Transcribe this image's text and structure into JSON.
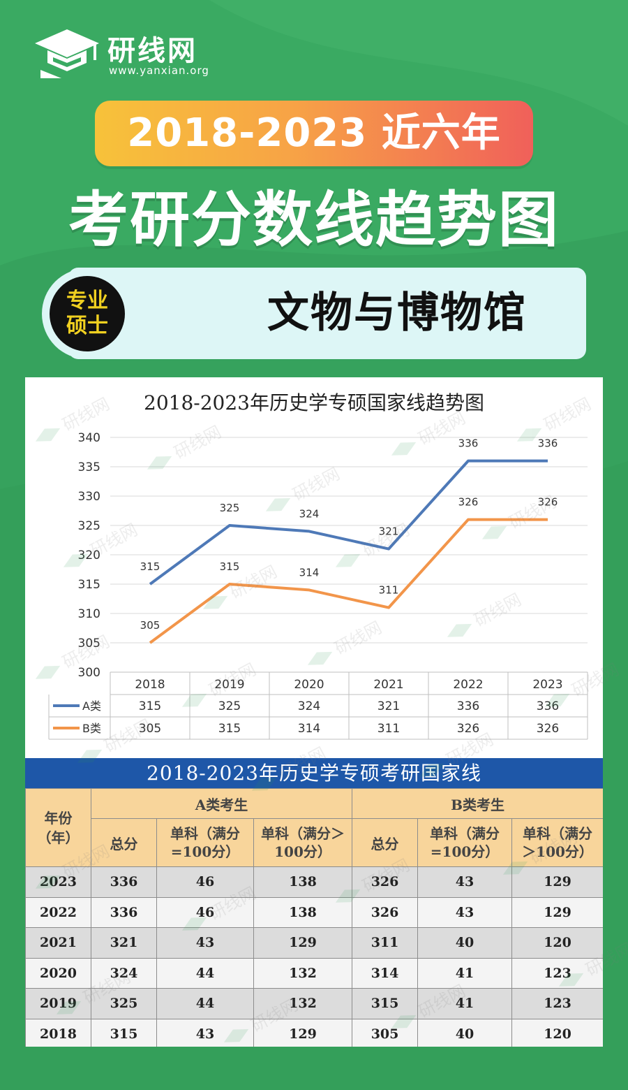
{
  "brand": {
    "name": "研线网",
    "url": "www.yanxian.org"
  },
  "header": {
    "years_banner": "2018-2023 近六年",
    "main_title": "考研分数线趋势图"
  },
  "subject": {
    "badge_line1": "专业",
    "badge_line2": "硕士",
    "name": "文物与博物馆"
  },
  "chart_data": {
    "type": "line",
    "title": "2018-2023年历史学专硕国家线趋势图",
    "categories": [
      "2018",
      "2019",
      "2020",
      "2021",
      "2022",
      "2023"
    ],
    "series": [
      {
        "name": "A类",
        "values": [
          315,
          325,
          324,
          321,
          336,
          336
        ],
        "color": "#4e79b7"
      },
      {
        "name": "B类",
        "values": [
          305,
          315,
          314,
          311,
          326,
          326
        ],
        "color": "#f2954a"
      }
    ],
    "ylim": [
      300,
      340
    ],
    "yticks": [
      "300",
      "305",
      "310",
      "315",
      "320",
      "325",
      "330",
      "335",
      "340"
    ],
    "grid": true,
    "legend": "data-table-below"
  },
  "table": {
    "title": "2018-2023年历史学专硕考研国家线",
    "year_header": "年份（年）",
    "group_a": "A类考生",
    "group_b": "B类考生",
    "col_total": "总分",
    "col_single_100": "单科（满分=100分）",
    "col_single_over100": "单科（满分＞100分）",
    "rows": [
      {
        "year": "2023",
        "a_total": "336",
        "a_s100": "46",
        "a_sover": "138",
        "b_total": "326",
        "b_s100": "43",
        "b_sover": "129"
      },
      {
        "year": "2022",
        "a_total": "336",
        "a_s100": "46",
        "a_sover": "138",
        "b_total": "326",
        "b_s100": "43",
        "b_sover": "129"
      },
      {
        "year": "2021",
        "a_total": "321",
        "a_s100": "43",
        "a_sover": "129",
        "b_total": "311",
        "b_s100": "40",
        "b_sover": "120"
      },
      {
        "year": "2020",
        "a_total": "324",
        "a_s100": "44",
        "a_sover": "132",
        "b_total": "314",
        "b_s100": "41",
        "b_sover": "123"
      },
      {
        "year": "2019",
        "a_total": "325",
        "a_s100": "44",
        "a_sover": "132",
        "b_total": "315",
        "b_s100": "41",
        "b_sover": "123"
      },
      {
        "year": "2018",
        "a_total": "315",
        "a_s100": "43",
        "a_sover": "129",
        "b_total": "305",
        "b_s100": "40",
        "b_sover": "120"
      }
    ]
  },
  "colors": {
    "background": "#3aaa62",
    "table_header": "#f8d59b",
    "table_title": "#1e57a8"
  }
}
